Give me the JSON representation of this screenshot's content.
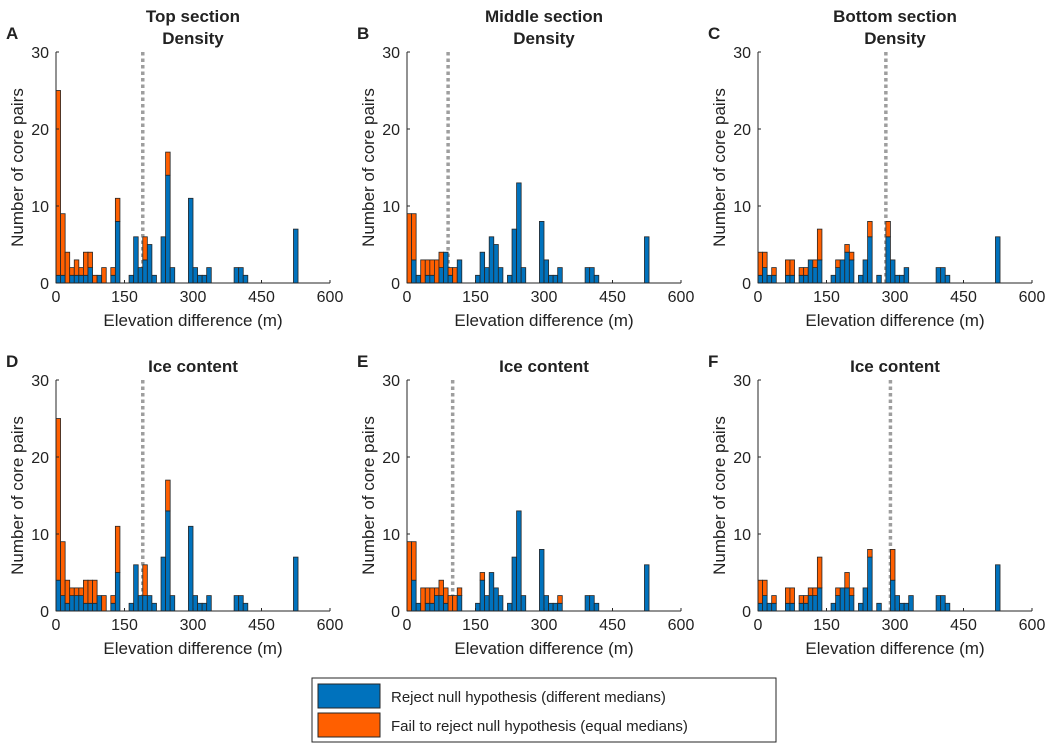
{
  "colors": {
    "reject": "#0072BD",
    "fail": "#FF5F00",
    "median_line": "#9E9E9E",
    "axis": "#262626"
  },
  "legend": {
    "reject": "Reject null hypothesis (different medians)",
    "fail": "Fail to reject null hypothesis (equal medians)"
  },
  "chart_data": [
    {
      "type": "bar",
      "stacked": true,
      "panel": "A",
      "title": [
        "Top section",
        "Density"
      ],
      "xlabel": "Elevation difference (m)",
      "ylabel": "Number of core pairs",
      "xlim": [
        0,
        600
      ],
      "ylim": [
        0,
        30
      ],
      "xticks": [
        0,
        150,
        300,
        450,
        600
      ],
      "yticks": [
        0,
        10,
        20,
        30
      ],
      "median_line": 190,
      "bins": [
        {
          "x": 5,
          "reject": 1,
          "fail": 24
        },
        {
          "x": 15,
          "reject": 1,
          "fail": 8
        },
        {
          "x": 25,
          "reject": 0,
          "fail": 4
        },
        {
          "x": 35,
          "reject": 1,
          "fail": 1
        },
        {
          "x": 45,
          "reject": 1,
          "fail": 2
        },
        {
          "x": 55,
          "reject": 1,
          "fail": 1
        },
        {
          "x": 65,
          "reject": 1,
          "fail": 3
        },
        {
          "x": 75,
          "reject": 2,
          "fail": 2
        },
        {
          "x": 85,
          "reject": 0,
          "fail": 1
        },
        {
          "x": 95,
          "reject": 1,
          "fail": 0
        },
        {
          "x": 105,
          "reject": 0,
          "fail": 2
        },
        {
          "x": 125,
          "reject": 1,
          "fail": 1
        },
        {
          "x": 135,
          "reject": 8,
          "fail": 3
        },
        {
          "x": 165,
          "reject": 1,
          "fail": 0
        },
        {
          "x": 175,
          "reject": 6,
          "fail": 0
        },
        {
          "x": 185,
          "reject": 2,
          "fail": 0
        },
        {
          "x": 195,
          "reject": 3,
          "fail": 3
        },
        {
          "x": 205,
          "reject": 5,
          "fail": 0
        },
        {
          "x": 215,
          "reject": 1,
          "fail": 0
        },
        {
          "x": 235,
          "reject": 6,
          "fail": 0
        },
        {
          "x": 245,
          "reject": 14,
          "fail": 3
        },
        {
          "x": 255,
          "reject": 2,
          "fail": 0
        },
        {
          "x": 295,
          "reject": 11,
          "fail": 0
        },
        {
          "x": 305,
          "reject": 2,
          "fail": 0
        },
        {
          "x": 315,
          "reject": 1,
          "fail": 0
        },
        {
          "x": 325,
          "reject": 1,
          "fail": 0
        },
        {
          "x": 335,
          "reject": 2,
          "fail": 0
        },
        {
          "x": 395,
          "reject": 2,
          "fail": 0
        },
        {
          "x": 405,
          "reject": 2,
          "fail": 0
        },
        {
          "x": 415,
          "reject": 1,
          "fail": 0
        },
        {
          "x": 525,
          "reject": 7,
          "fail": 0
        }
      ]
    },
    {
      "type": "bar",
      "stacked": true,
      "panel": "B",
      "title": [
        "Middle section",
        "Density"
      ],
      "xlabel": "Elevation difference (m)",
      "ylabel": "Number of core pairs",
      "xlim": [
        0,
        600
      ],
      "ylim": [
        0,
        30
      ],
      "xticks": [
        0,
        150,
        300,
        450,
        600
      ],
      "yticks": [
        0,
        10,
        20,
        30
      ],
      "median_line": 90,
      "bins": [
        {
          "x": 5,
          "reject": 0,
          "fail": 9
        },
        {
          "x": 15,
          "reject": 3,
          "fail": 6
        },
        {
          "x": 25,
          "reject": 1,
          "fail": 0
        },
        {
          "x": 35,
          "reject": 0,
          "fail": 3
        },
        {
          "x": 45,
          "reject": 1,
          "fail": 2
        },
        {
          "x": 55,
          "reject": 1,
          "fail": 2
        },
        {
          "x": 65,
          "reject": 0,
          "fail": 3
        },
        {
          "x": 75,
          "reject": 2,
          "fail": 2
        },
        {
          "x": 85,
          "reject": 4,
          "fail": 0
        },
        {
          "x": 95,
          "reject": 1,
          "fail": 1
        },
        {
          "x": 105,
          "reject": 0,
          "fail": 2
        },
        {
          "x": 115,
          "reject": 3,
          "fail": 0
        },
        {
          "x": 155,
          "reject": 1,
          "fail": 0
        },
        {
          "x": 165,
          "reject": 4,
          "fail": 0
        },
        {
          "x": 175,
          "reject": 2,
          "fail": 0
        },
        {
          "x": 185,
          "reject": 6,
          "fail": 0
        },
        {
          "x": 195,
          "reject": 5,
          "fail": 0
        },
        {
          "x": 205,
          "reject": 2,
          "fail": 0
        },
        {
          "x": 225,
          "reject": 1,
          "fail": 0
        },
        {
          "x": 235,
          "reject": 7,
          "fail": 0
        },
        {
          "x": 245,
          "reject": 13,
          "fail": 0
        },
        {
          "x": 255,
          "reject": 2,
          "fail": 0
        },
        {
          "x": 295,
          "reject": 8,
          "fail": 0
        },
        {
          "x": 305,
          "reject": 3,
          "fail": 0
        },
        {
          "x": 315,
          "reject": 1,
          "fail": 0
        },
        {
          "x": 325,
          "reject": 1,
          "fail": 0
        },
        {
          "x": 335,
          "reject": 2,
          "fail": 0
        },
        {
          "x": 395,
          "reject": 2,
          "fail": 0
        },
        {
          "x": 405,
          "reject": 2,
          "fail": 0
        },
        {
          "x": 415,
          "reject": 1,
          "fail": 0
        },
        {
          "x": 525,
          "reject": 6,
          "fail": 0
        }
      ]
    },
    {
      "type": "bar",
      "stacked": true,
      "panel": "C",
      "title": [
        "Bottom section",
        "Density"
      ],
      "xlabel": "Elevation difference (m)",
      "ylabel": "Number of core pairs",
      "xlim": [
        0,
        600
      ],
      "ylim": [
        0,
        30
      ],
      "xticks": [
        0,
        150,
        300,
        450,
        600
      ],
      "yticks": [
        0,
        10,
        20,
        30
      ],
      "median_line": 280,
      "bins": [
        {
          "x": 5,
          "reject": 1,
          "fail": 3
        },
        {
          "x": 15,
          "reject": 2,
          "fail": 2
        },
        {
          "x": 25,
          "reject": 1,
          "fail": 0
        },
        {
          "x": 35,
          "reject": 1,
          "fail": 1
        },
        {
          "x": 65,
          "reject": 1,
          "fail": 2
        },
        {
          "x": 75,
          "reject": 1,
          "fail": 2
        },
        {
          "x": 95,
          "reject": 1,
          "fail": 1
        },
        {
          "x": 105,
          "reject": 1,
          "fail": 1
        },
        {
          "x": 115,
          "reject": 3,
          "fail": 0
        },
        {
          "x": 125,
          "reject": 2,
          "fail": 1
        },
        {
          "x": 135,
          "reject": 3,
          "fail": 4
        },
        {
          "x": 165,
          "reject": 1,
          "fail": 0
        },
        {
          "x": 175,
          "reject": 2,
          "fail": 1
        },
        {
          "x": 185,
          "reject": 3,
          "fail": 0
        },
        {
          "x": 195,
          "reject": 4,
          "fail": 1
        },
        {
          "x": 205,
          "reject": 3,
          "fail": 1
        },
        {
          "x": 225,
          "reject": 1,
          "fail": 0
        },
        {
          "x": 235,
          "reject": 3,
          "fail": 0
        },
        {
          "x": 245,
          "reject": 6,
          "fail": 2
        },
        {
          "x": 265,
          "reject": 1,
          "fail": 0
        },
        {
          "x": 285,
          "reject": 6,
          "fail": 2
        },
        {
          "x": 295,
          "reject": 3,
          "fail": 0
        },
        {
          "x": 305,
          "reject": 1,
          "fail": 0
        },
        {
          "x": 315,
          "reject": 1,
          "fail": 0
        },
        {
          "x": 325,
          "reject": 2,
          "fail": 0
        },
        {
          "x": 395,
          "reject": 2,
          "fail": 0
        },
        {
          "x": 405,
          "reject": 2,
          "fail": 0
        },
        {
          "x": 415,
          "reject": 1,
          "fail": 0
        },
        {
          "x": 525,
          "reject": 6,
          "fail": 0
        }
      ]
    },
    {
      "type": "bar",
      "stacked": true,
      "panel": "D",
      "title": [
        "Ice content"
      ],
      "xlabel": "Elevation difference (m)",
      "ylabel": "Number of core pairs",
      "xlim": [
        0,
        600
      ],
      "ylim": [
        0,
        30
      ],
      "xticks": [
        0,
        150,
        300,
        450,
        600
      ],
      "yticks": [
        0,
        10,
        20,
        30
      ],
      "median_line": 190,
      "bins": [
        {
          "x": 5,
          "reject": 4,
          "fail": 21
        },
        {
          "x": 15,
          "reject": 2,
          "fail": 7
        },
        {
          "x": 25,
          "reject": 1,
          "fail": 3
        },
        {
          "x": 35,
          "reject": 2,
          "fail": 1
        },
        {
          "x": 45,
          "reject": 2,
          "fail": 1
        },
        {
          "x": 55,
          "reject": 2,
          "fail": 1
        },
        {
          "x": 65,
          "reject": 1,
          "fail": 3
        },
        {
          "x": 75,
          "reject": 1,
          "fail": 3
        },
        {
          "x": 85,
          "reject": 1,
          "fail": 3
        },
        {
          "x": 95,
          "reject": 2,
          "fail": 0
        },
        {
          "x": 105,
          "reject": 0,
          "fail": 2
        },
        {
          "x": 125,
          "reject": 1,
          "fail": 1
        },
        {
          "x": 135,
          "reject": 5,
          "fail": 6
        },
        {
          "x": 165,
          "reject": 1,
          "fail": 0
        },
        {
          "x": 175,
          "reject": 6,
          "fail": 0
        },
        {
          "x": 185,
          "reject": 2,
          "fail": 0
        },
        {
          "x": 195,
          "reject": 2,
          "fail": 4
        },
        {
          "x": 205,
          "reject": 2,
          "fail": 0
        },
        {
          "x": 215,
          "reject": 1,
          "fail": 0
        },
        {
          "x": 235,
          "reject": 7,
          "fail": 0
        },
        {
          "x": 245,
          "reject": 13,
          "fail": 4
        },
        {
          "x": 255,
          "reject": 2,
          "fail": 0
        },
        {
          "x": 295,
          "reject": 11,
          "fail": 0
        },
        {
          "x": 305,
          "reject": 2,
          "fail": 0
        },
        {
          "x": 315,
          "reject": 1,
          "fail": 0
        },
        {
          "x": 325,
          "reject": 1,
          "fail": 0
        },
        {
          "x": 335,
          "reject": 2,
          "fail": 0
        },
        {
          "x": 395,
          "reject": 2,
          "fail": 0
        },
        {
          "x": 405,
          "reject": 2,
          "fail": 0
        },
        {
          "x": 415,
          "reject": 1,
          "fail": 0
        },
        {
          "x": 525,
          "reject": 7,
          "fail": 0
        }
      ]
    },
    {
      "type": "bar",
      "stacked": true,
      "panel": "E",
      "title": [
        "Ice content"
      ],
      "xlabel": "Elevation difference (m)",
      "ylabel": "Number of core pairs",
      "xlim": [
        0,
        600
      ],
      "ylim": [
        0,
        30
      ],
      "xticks": [
        0,
        150,
        300,
        450,
        600
      ],
      "yticks": [
        0,
        10,
        20,
        30
      ],
      "median_line": 100,
      "bins": [
        {
          "x": 5,
          "reject": 0,
          "fail": 9
        },
        {
          "x": 15,
          "reject": 4,
          "fail": 5
        },
        {
          "x": 25,
          "reject": 1,
          "fail": 0
        },
        {
          "x": 35,
          "reject": 0,
          "fail": 3
        },
        {
          "x": 45,
          "reject": 1,
          "fail": 2
        },
        {
          "x": 55,
          "reject": 1,
          "fail": 2
        },
        {
          "x": 65,
          "reject": 2,
          "fail": 1
        },
        {
          "x": 75,
          "reject": 2,
          "fail": 2
        },
        {
          "x": 85,
          "reject": 1,
          "fail": 2
        },
        {
          "x": 95,
          "reject": 0,
          "fail": 2
        },
        {
          "x": 105,
          "reject": 0,
          "fail": 2
        },
        {
          "x": 115,
          "reject": 2,
          "fail": 1
        },
        {
          "x": 155,
          "reject": 1,
          "fail": 0
        },
        {
          "x": 165,
          "reject": 4,
          "fail": 1
        },
        {
          "x": 175,
          "reject": 2,
          "fail": 0
        },
        {
          "x": 185,
          "reject": 5,
          "fail": 0
        },
        {
          "x": 195,
          "reject": 3,
          "fail": 0
        },
        {
          "x": 205,
          "reject": 2,
          "fail": 0
        },
        {
          "x": 225,
          "reject": 1,
          "fail": 0
        },
        {
          "x": 235,
          "reject": 7,
          "fail": 0
        },
        {
          "x": 245,
          "reject": 13,
          "fail": 0
        },
        {
          "x": 255,
          "reject": 2,
          "fail": 0
        },
        {
          "x": 295,
          "reject": 8,
          "fail": 0
        },
        {
          "x": 305,
          "reject": 2,
          "fail": 0
        },
        {
          "x": 315,
          "reject": 1,
          "fail": 0
        },
        {
          "x": 325,
          "reject": 1,
          "fail": 0
        },
        {
          "x": 335,
          "reject": 1,
          "fail": 1
        },
        {
          "x": 395,
          "reject": 2,
          "fail": 0
        },
        {
          "x": 405,
          "reject": 2,
          "fail": 0
        },
        {
          "x": 415,
          "reject": 1,
          "fail": 0
        },
        {
          "x": 525,
          "reject": 6,
          "fail": 0
        }
      ]
    },
    {
      "type": "bar",
      "stacked": true,
      "panel": "F",
      "title": [
        "Ice content"
      ],
      "xlabel": "Elevation difference (m)",
      "ylabel": "Number of core pairs",
      "xlim": [
        0,
        600
      ],
      "ylim": [
        0,
        30
      ],
      "xticks": [
        0,
        150,
        300,
        450,
        600
      ],
      "yticks": [
        0,
        10,
        20,
        30
      ],
      "median_line": 290,
      "bins": [
        {
          "x": 5,
          "reject": 1,
          "fail": 3
        },
        {
          "x": 15,
          "reject": 2,
          "fail": 2
        },
        {
          "x": 25,
          "reject": 1,
          "fail": 0
        },
        {
          "x": 35,
          "reject": 1,
          "fail": 1
        },
        {
          "x": 65,
          "reject": 1,
          "fail": 2
        },
        {
          "x": 75,
          "reject": 1,
          "fail": 2
        },
        {
          "x": 95,
          "reject": 1,
          "fail": 1
        },
        {
          "x": 105,
          "reject": 1,
          "fail": 1
        },
        {
          "x": 115,
          "reject": 2,
          "fail": 1
        },
        {
          "x": 125,
          "reject": 2,
          "fail": 1
        },
        {
          "x": 135,
          "reject": 3,
          "fail": 4
        },
        {
          "x": 165,
          "reject": 1,
          "fail": 0
        },
        {
          "x": 175,
          "reject": 2,
          "fail": 1
        },
        {
          "x": 185,
          "reject": 3,
          "fail": 0
        },
        {
          "x": 195,
          "reject": 3,
          "fail": 2
        },
        {
          "x": 205,
          "reject": 2,
          "fail": 1
        },
        {
          "x": 225,
          "reject": 1,
          "fail": 0
        },
        {
          "x": 235,
          "reject": 3,
          "fail": 0
        },
        {
          "x": 245,
          "reject": 7,
          "fail": 1
        },
        {
          "x": 265,
          "reject": 1,
          "fail": 0
        },
        {
          "x": 295,
          "reject": 4,
          "fail": 4
        },
        {
          "x": 305,
          "reject": 2,
          "fail": 0
        },
        {
          "x": 315,
          "reject": 1,
          "fail": 0
        },
        {
          "x": 325,
          "reject": 1,
          "fail": 0
        },
        {
          "x": 335,
          "reject": 2,
          "fail": 0
        },
        {
          "x": 395,
          "reject": 2,
          "fail": 0
        },
        {
          "x": 405,
          "reject": 2,
          "fail": 0
        },
        {
          "x": 415,
          "reject": 1,
          "fail": 0
        },
        {
          "x": 525,
          "reject": 6,
          "fail": 0
        }
      ]
    }
  ]
}
